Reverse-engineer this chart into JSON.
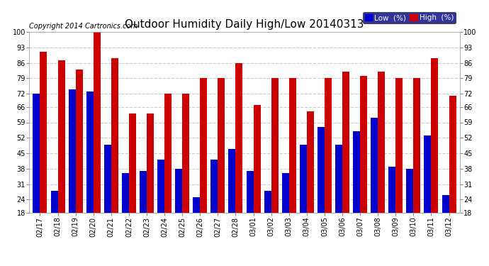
{
  "title": "Outdoor Humidity Daily High/Low 20140313",
  "copyright": "Copyright 2014 Cartronics.com",
  "dates": [
    "02/17",
    "02/18",
    "02/19",
    "02/20",
    "02/21",
    "02/22",
    "02/23",
    "02/24",
    "02/25",
    "02/26",
    "02/27",
    "02/28",
    "03/01",
    "03/02",
    "03/03",
    "03/04",
    "03/05",
    "03/06",
    "03/07",
    "03/08",
    "03/09",
    "03/10",
    "03/11",
    "03/12"
  ],
  "high": [
    91,
    87,
    83,
    100,
    88,
    63,
    63,
    72,
    72,
    79,
    79,
    86,
    67,
    79,
    79,
    64,
    79,
    82,
    80,
    82,
    79,
    79,
    88,
    71
  ],
  "low": [
    72,
    28,
    74,
    73,
    49,
    36,
    37,
    42,
    38,
    25,
    42,
    47,
    37,
    28,
    36,
    49,
    57,
    49,
    55,
    61,
    39,
    38,
    53,
    26
  ],
  "bg_color": "#ffffff",
  "grid_color": "#cccccc",
  "high_color": "#cc0000",
  "low_color": "#0000cc",
  "ylim_min": 18,
  "ylim_max": 100,
  "yticks": [
    18,
    24,
    31,
    38,
    45,
    52,
    59,
    66,
    72,
    79,
    86,
    93,
    100
  ],
  "bar_width": 0.4,
  "title_fontsize": 11,
  "tick_fontsize": 7,
  "legend_fontsize": 7.5,
  "copyright_fontsize": 7
}
